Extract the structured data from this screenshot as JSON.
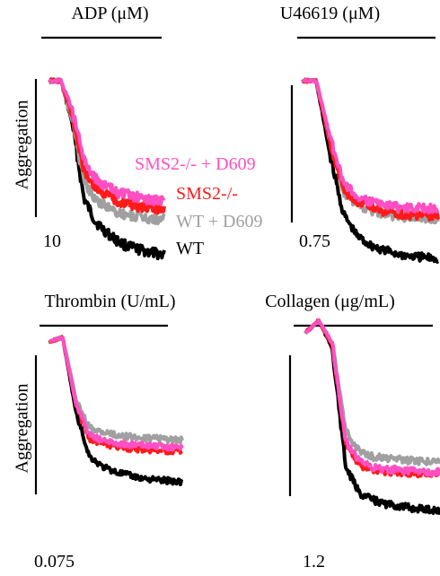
{
  "colors": {
    "WT": "#000000",
    "WT + D609": "#a0a0a0",
    "SMS2-/-": "#ff1a1a",
    "SMS2-/- + D609": "#ff4fc3"
  },
  "chart_data": [
    {
      "type": "line",
      "title": "ADP (μM)",
      "ylabel": "Aggregation",
      "concentration_label": "10",
      "legend": [
        "SMS2-/- + D609",
        "SMS2-/-",
        "WT + D609",
        "WT"
      ],
      "x": [
        0,
        1,
        2,
        3,
        4,
        5,
        6,
        7,
        8,
        9,
        10
      ],
      "series": [
        {
          "name": "SMS2-/- + D609",
          "values": [
            0.0,
            0.0,
            -0.2,
            -0.55,
            -0.68,
            -0.74,
            -0.78,
            -0.8,
            -0.82,
            -0.83,
            -0.84
          ]
        },
        {
          "name": "SMS2-/-",
          "values": [
            0.0,
            0.0,
            -0.25,
            -0.62,
            -0.74,
            -0.8,
            -0.84,
            -0.86,
            -0.88,
            -0.89,
            -0.9
          ]
        },
        {
          "name": "WT + D609",
          "values": [
            0.0,
            0.0,
            -0.28,
            -0.7,
            -0.82,
            -0.88,
            -0.92,
            -0.94,
            -0.95,
            -0.96,
            -0.97
          ]
        },
        {
          "name": "WT",
          "values": [
            0.0,
            0.0,
            -0.3,
            -0.82,
            -0.98,
            -1.06,
            -1.12,
            -1.16,
            -1.18,
            -1.2,
            -1.21
          ]
        }
      ]
    },
    {
      "type": "line",
      "title": "U46619 (μM)",
      "concentration_label": "0.75",
      "x": [
        0,
        1,
        2,
        3,
        4,
        5,
        6,
        7,
        8,
        9,
        10
      ],
      "series": [
        {
          "name": "SMS2-/- + D609",
          "values": [
            0.0,
            0.0,
            -0.45,
            -0.85,
            -0.95,
            -1.0,
            -1.02,
            -1.04,
            -1.05,
            -1.05,
            -1.06
          ]
        },
        {
          "name": "SMS2-/-",
          "values": [
            0.0,
            0.0,
            -0.5,
            -0.9,
            -1.0,
            -1.05,
            -1.08,
            -1.1,
            -1.11,
            -1.12,
            -1.12
          ]
        },
        {
          "name": "WT + D609",
          "values": [
            0.0,
            0.0,
            -0.5,
            -0.92,
            -1.02,
            -1.07,
            -1.1,
            -1.12,
            -1.13,
            -1.14,
            -1.14
          ]
        },
        {
          "name": "WT",
          "values": [
            0.0,
            0.0,
            -0.6,
            -1.1,
            -1.28,
            -1.36,
            -1.4,
            -1.43,
            -1.45,
            -1.46,
            -1.47
          ]
        }
      ]
    },
    {
      "type": "line",
      "title": "Thrombin (U/mL)",
      "ylabel": "Aggregation",
      "concentration_label": "0.075",
      "x": [
        0,
        1,
        2,
        3,
        4,
        5,
        6,
        7,
        8,
        9,
        10
      ],
      "series": [
        {
          "name": "SMS2-/- + D609",
          "values": [
            0.0,
            0.05,
            -0.7,
            -1.05,
            -1.12,
            -1.15,
            -1.17,
            -1.18,
            -1.19,
            -1.2,
            -1.2
          ]
        },
        {
          "name": "SMS2-/-",
          "values": [
            0.0,
            0.05,
            -0.72,
            -1.1,
            -1.16,
            -1.19,
            -1.21,
            -1.22,
            -1.23,
            -1.24,
            -1.24
          ]
        },
        {
          "name": "WT + D609",
          "values": [
            0.0,
            0.05,
            -0.65,
            -0.98,
            -1.03,
            -1.06,
            -1.08,
            -1.09,
            -1.1,
            -1.11,
            -1.12
          ]
        },
        {
          "name": "WT",
          "values": [
            0.0,
            0.05,
            -0.8,
            -1.3,
            -1.42,
            -1.48,
            -1.52,
            -1.55,
            -1.57,
            -1.58,
            -1.59
          ]
        }
      ]
    },
    {
      "type": "line",
      "title": "Collagen (μg/mL)",
      "concentration_label": "1.2",
      "x": [
        0,
        1,
        2,
        3,
        4,
        5,
        6,
        7,
        8,
        9,
        10
      ],
      "series": [
        {
          "name": "SMS2-/- + D609",
          "values": [
            0.0,
            0.12,
            -0.1,
            -1.05,
            -1.25,
            -1.3,
            -1.32,
            -1.33,
            -1.34,
            -1.35,
            -1.35
          ]
        },
        {
          "name": "SMS2-/-",
          "values": [
            0.0,
            0.12,
            -0.12,
            -1.08,
            -1.28,
            -1.32,
            -1.34,
            -1.35,
            -1.36,
            -1.36,
            -1.37
          ]
        },
        {
          "name": "WT + D609",
          "values": [
            0.0,
            0.12,
            -0.1,
            -0.95,
            -1.15,
            -1.2,
            -1.22,
            -1.23,
            -1.24,
            -1.24,
            -1.25
          ]
        },
        {
          "name": "WT",
          "values": [
            0.0,
            0.12,
            -0.15,
            -1.3,
            -1.55,
            -1.62,
            -1.66,
            -1.68,
            -1.7,
            -1.71,
            -1.72
          ]
        }
      ]
    }
  ]
}
